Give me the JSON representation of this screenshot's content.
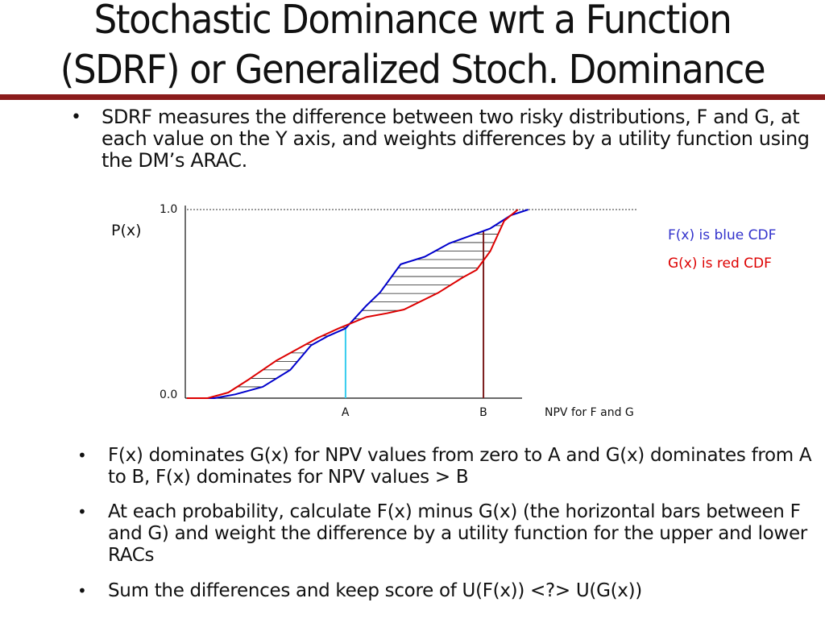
{
  "title": {
    "line1": "Stochastic Dominance wrt a Function",
    "line2": "(SDRF) or Generalized Stoch. Dominance"
  },
  "intro_bullet": {
    "symbol": "•",
    "text": "SDRF measures the difference between two risky distributions, F and G, at each value on the Y axis, and weights differences by a utility function using the DM’s ARAC."
  },
  "chart_data": {
    "type": "line",
    "title": "",
    "ylabel": "P(x)",
    "xlabel": "NPV for F and G",
    "y_ticks": [
      "1.0",
      "0.0"
    ],
    "ylim": [
      0,
      1
    ],
    "x_markers": [
      {
        "label": "A",
        "x": 0.46
      },
      {
        "label": "B",
        "x": 0.86
      }
    ],
    "grid": "dotted line at 1.0",
    "series": [
      {
        "name": "F(x)",
        "color": "#0000cc",
        "x": [
          0.0,
          0.08,
          0.14,
          0.22,
          0.3,
          0.36,
          0.41,
          0.46,
          0.52,
          0.56,
          0.62,
          0.69,
          0.76,
          0.82,
          0.88,
          0.94,
          0.99
        ],
        "y": [
          0.0,
          0.0,
          0.02,
          0.06,
          0.15,
          0.28,
          0.33,
          0.37,
          0.49,
          0.56,
          0.71,
          0.75,
          0.82,
          0.86,
          0.9,
          0.97,
          1.0
        ]
      },
      {
        "name": "G(x)",
        "color": "#dd0000",
        "x": [
          0.0,
          0.06,
          0.12,
          0.18,
          0.26,
          0.31,
          0.38,
          0.44,
          0.52,
          0.58,
          0.63,
          0.73,
          0.8,
          0.84,
          0.88,
          0.92,
          0.96
        ],
        "y": [
          0.0,
          0.0,
          0.03,
          0.1,
          0.2,
          0.25,
          0.32,
          0.37,
          0.43,
          0.45,
          0.47,
          0.56,
          0.64,
          0.68,
          0.78,
          0.94,
          1.0
        ]
      }
    ],
    "legend": [
      {
        "label": "F(x) is blue CDF",
        "color": "#3333cc"
      },
      {
        "label": "G(x) is red CDF",
        "color": "#dd0000"
      }
    ]
  },
  "bullets": [
    {
      "symbol": "•",
      "text": "F(x) dominates G(x) for NPV values from zero to A and G(x) dominates from A to B, F(x) dominates for NPV values > B"
    },
    {
      "symbol": "•",
      "text": "At each probability, calculate F(x) minus G(x) (the horizontal bars between F and G) and weight the difference by a utility function for the upper and lower RACs"
    },
    {
      "symbol": "•",
      "text": "Sum the differences and keep score of U(F(x)) <?> U(G(x))"
    }
  ],
  "colors": {
    "accent_rule": "#8b1c1c",
    "f_line": "#0000cc",
    "g_line": "#dd0000",
    "a_marker": "#33ccee",
    "b_marker": "#7a1a1a"
  }
}
